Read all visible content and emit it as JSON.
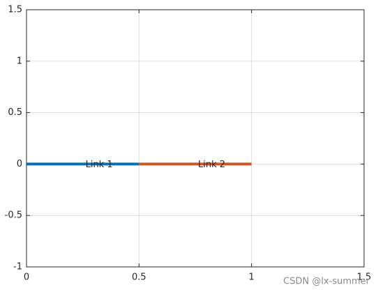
{
  "chart_data": {
    "type": "line",
    "series": [
      {
        "name": "Link 1",
        "color": "#0072bd",
        "x": [
          0,
          0.5
        ],
        "values": [
          0,
          0
        ]
      },
      {
        "name": "Link 2",
        "color": "#d95319",
        "x": [
          0.5,
          1
        ],
        "values": [
          0,
          0
        ]
      }
    ],
    "annotations": [
      {
        "text": "Link 1",
        "x": 0.25,
        "y": 0
      },
      {
        "text": "Link 2",
        "x": 0.75,
        "y": 0
      }
    ],
    "xlim": [
      0,
      1.5
    ],
    "xticks": [
      0,
      0.5,
      1,
      1.5
    ],
    "ylim": [
      -1,
      1.5
    ],
    "yticks": [
      -1,
      -0.5,
      0,
      0.5,
      1,
      1.5
    ],
    "grid": true,
    "watermark": "CSDN @lx-summer"
  }
}
